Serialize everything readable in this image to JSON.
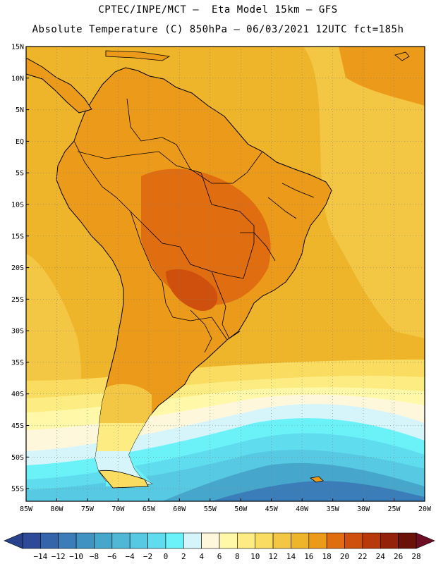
{
  "header": {
    "line1": "CPTEC/INPE/MCT –  Eta Model 15km – GFS",
    "line2": "Absolute Temperature (C) 850hPa – 06/03/2021 12UTC fct=185h"
  },
  "map": {
    "lat_labels": [
      "15N",
      "10N",
      "5N",
      "EQ",
      "5S",
      "10S",
      "15S",
      "20S",
      "25S",
      "30S",
      "35S",
      "40S",
      "45S",
      "50S",
      "55S"
    ],
    "lon_labels": [
      "85W",
      "80W",
      "75W",
      "70W",
      "65W",
      "60W",
      "55W",
      "50W",
      "45W",
      "40W",
      "35W",
      "30W",
      "25W",
      "20W"
    ],
    "lat_range": [
      15,
      -57
    ],
    "lon_range": [
      -85,
      -20
    ]
  },
  "colorbar": {
    "labels": [
      "-14",
      "-12",
      "-10",
      "-8",
      "-6",
      "-4",
      "-2",
      "0",
      "2",
      "4",
      "6",
      "8",
      "10",
      "12",
      "14",
      "16",
      "18",
      "20",
      "22",
      "24",
      "26",
      "28"
    ],
    "colors": [
      "#2d4a98",
      "#3465aa",
      "#3a7db8",
      "#3f92c2",
      "#47a6cc",
      "#50b7d6",
      "#58c9e2",
      "#5fdcee",
      "#6af2f8",
      "#d5f5fb",
      "#fff7dc",
      "#fff8a8",
      "#fcec82",
      "#f9dc60",
      "#f3c744",
      "#efb52a",
      "#ec9a1a",
      "#e06e10",
      "#cf4f0c",
      "#b83a0a",
      "#92230a",
      "#6b1208"
    ],
    "under_color": "#27418b",
    "over_color": "#6b0e23"
  }
}
